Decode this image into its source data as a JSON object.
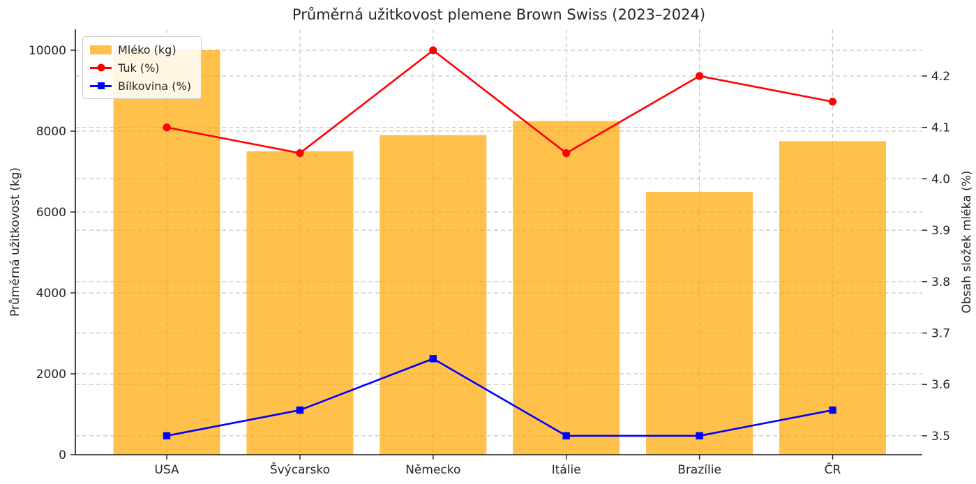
{
  "title": "Průměrná užitkovost plemene Brown Swiss (2023–2024)",
  "chart_data": {
    "type": "bar",
    "subtype": "combo bar + two lines (dual y-axes)",
    "categories": [
      "USA",
      "Švýcarsko",
      "Německo",
      "Itálie",
      "Brazílie",
      "ČR"
    ],
    "series": [
      {
        "name": "Mléko (kg)",
        "type": "bar",
        "axis": "left",
        "color": "#FFA500",
        "opacity": 0.7,
        "values": [
          10000,
          7500,
          7900,
          8250,
          6500,
          7750
        ]
      },
      {
        "name": "Tuk (%)",
        "type": "line",
        "marker": "circle",
        "axis": "right",
        "color": "#FF0000",
        "values": [
          4.1,
          4.05,
          4.25,
          4.05,
          4.2,
          4.15
        ]
      },
      {
        "name": "Bílkovina (%)",
        "type": "line",
        "marker": "square",
        "axis": "right",
        "color": "#0000FF",
        "values": [
          3.5,
          3.55,
          3.65,
          3.5,
          3.5,
          3.55
        ]
      }
    ],
    "left_axis": {
      "label": "Průměrná užitkovost (kg)",
      "ticks": [
        0,
        2000,
        4000,
        6000,
        8000,
        10000
      ],
      "range": [
        0,
        10520
      ]
    },
    "right_axis": {
      "label": "Obsah složek mléka (%)",
      "ticks": [
        3.5,
        3.6,
        3.7,
        3.8,
        3.9,
        4.0,
        4.1,
        4.2
      ],
      "range": [
        3.46,
        4.29
      ]
    },
    "legend": {
      "position": "upper left",
      "entries": [
        "Mléko (kg)",
        "Tuk (%)",
        "Bílkovina (%)"
      ]
    },
    "grid": {
      "visible": true,
      "style": "dashed",
      "color": "#C7C7C7",
      "both_axes": true
    }
  }
}
